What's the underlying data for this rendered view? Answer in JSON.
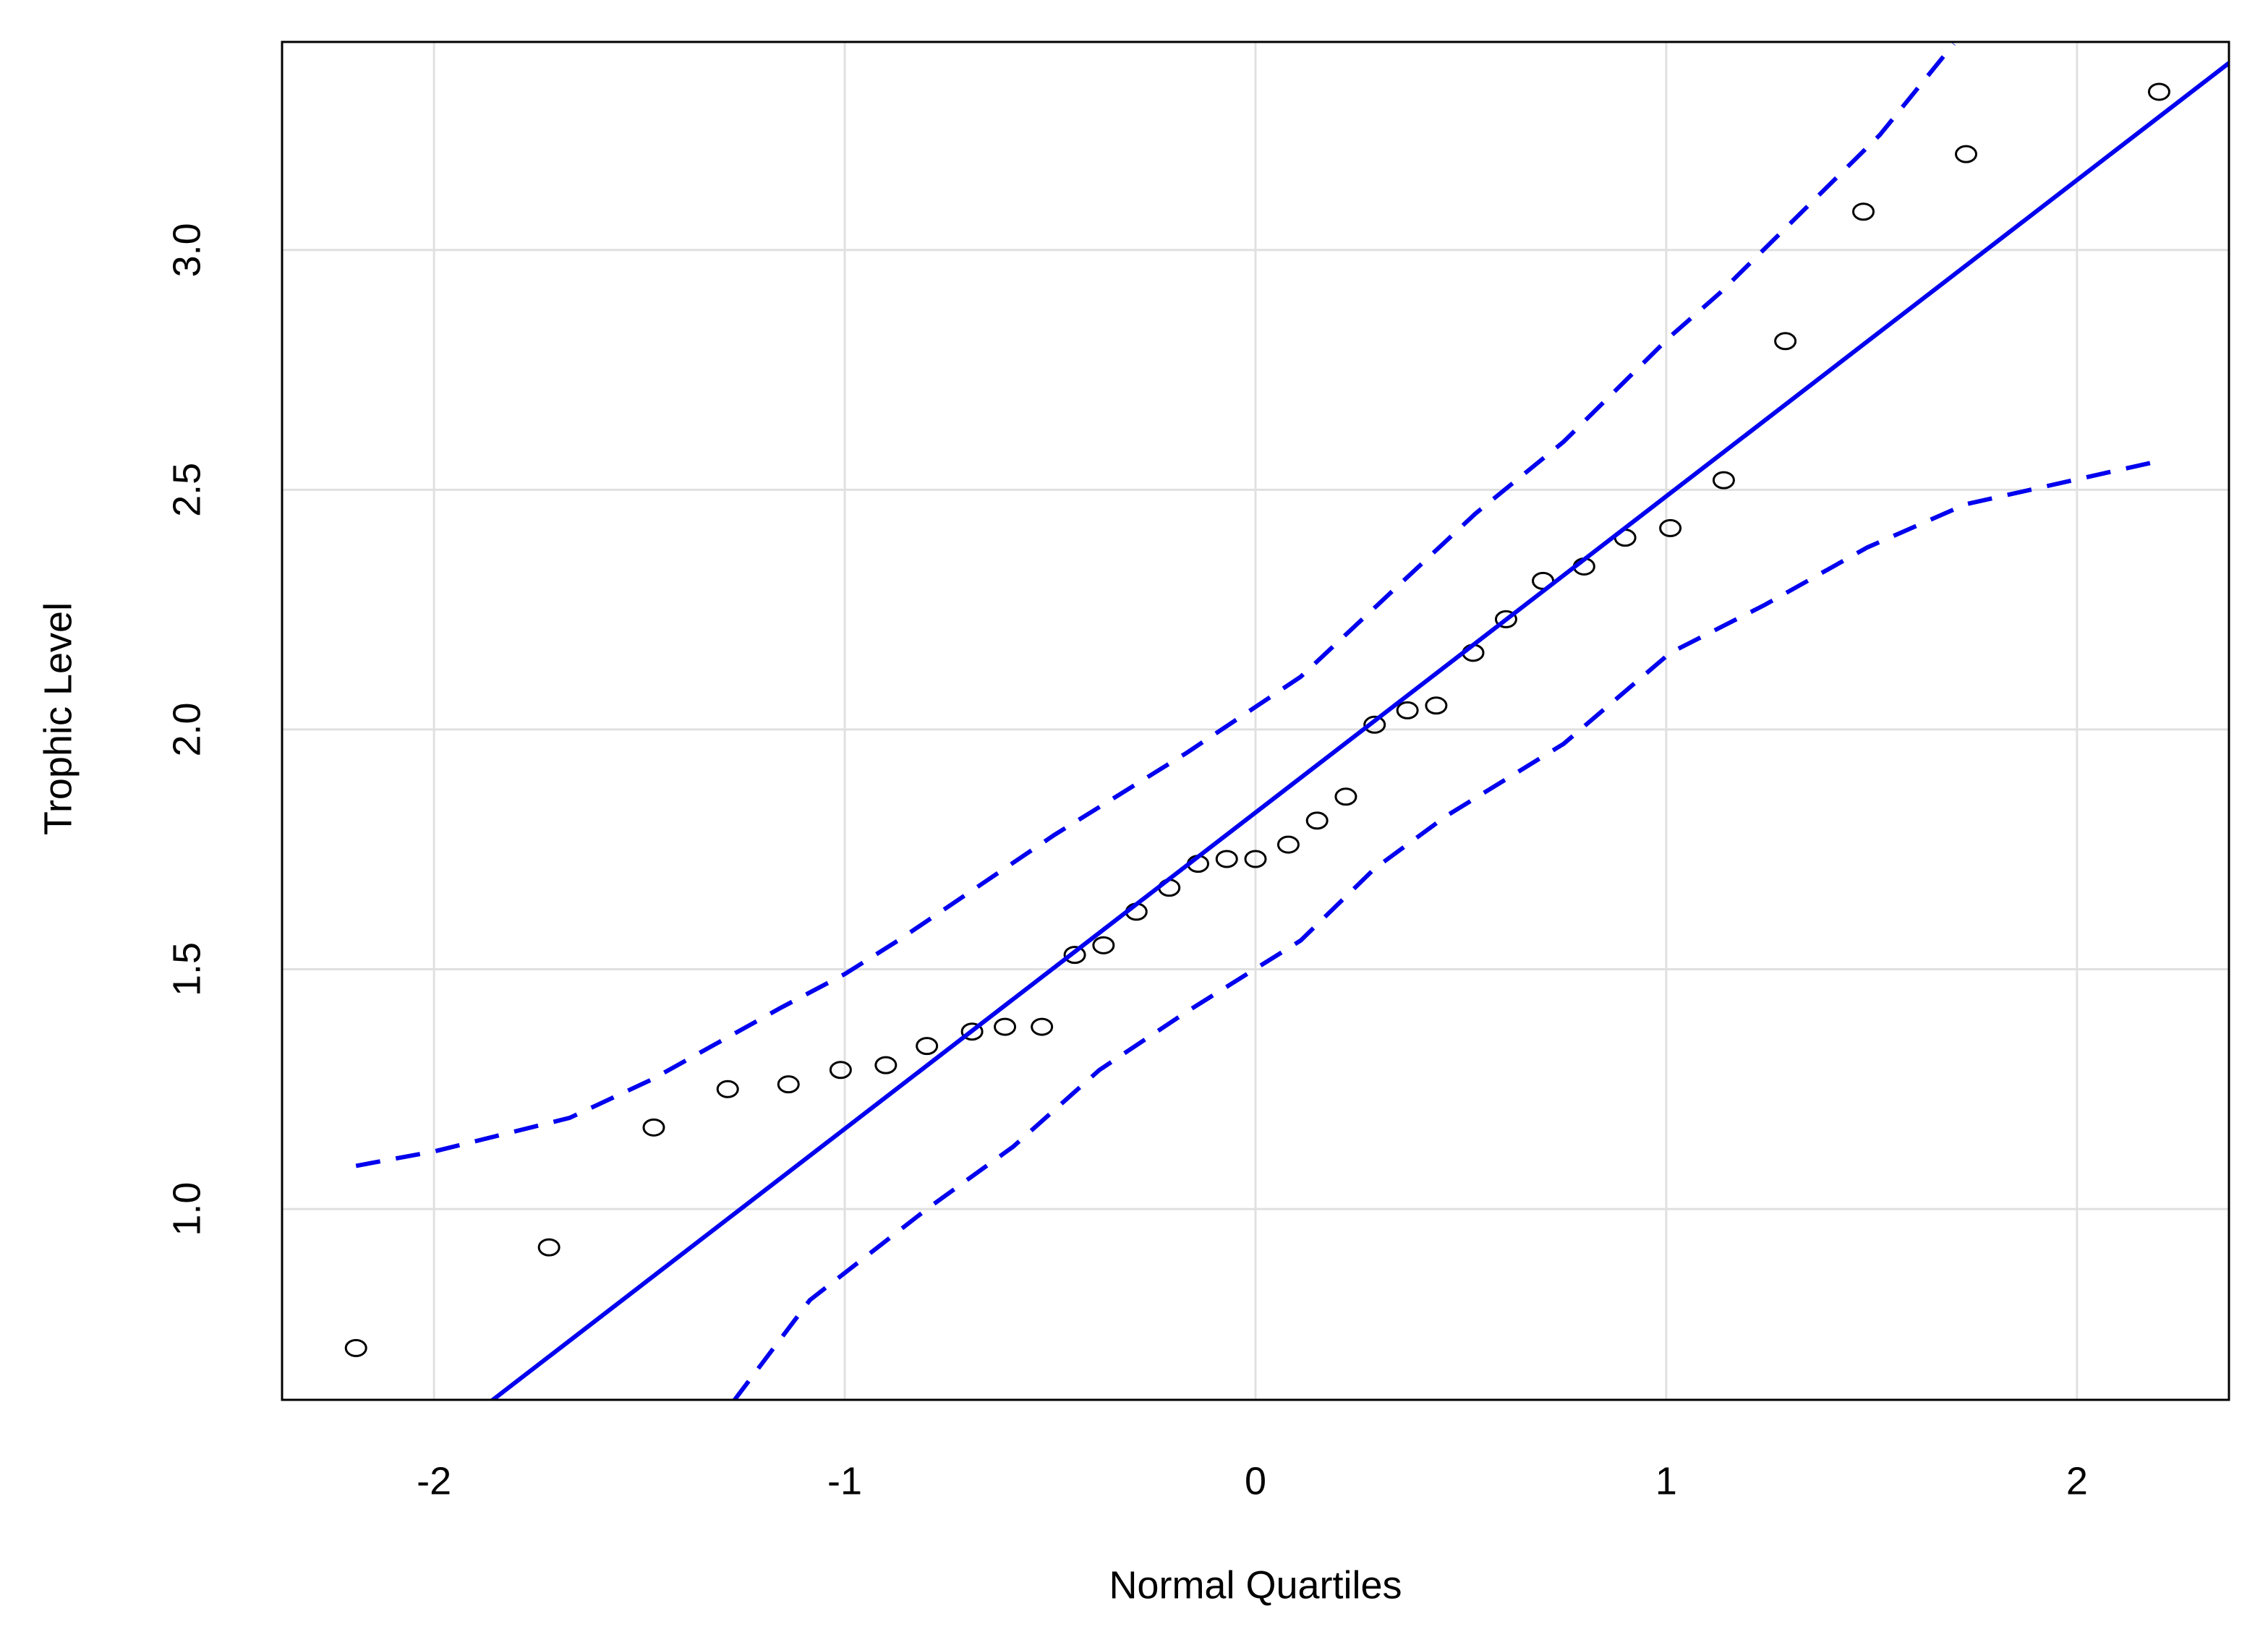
{
  "chart_data": {
    "type": "qq",
    "x_label": "Normal Quartiles",
    "y_label": "Trophic Level",
    "xlim": [
      -2.37,
      2.37
    ],
    "ylim": [
      0.602,
      3.434
    ],
    "xticks": [
      -2,
      -1,
      0,
      1,
      2
    ],
    "yticks": [
      {
        "value": 1,
        "label": "1.0"
      },
      1.5,
      {
        "value": 2,
        "label": "2.0"
      },
      2.5,
      {
        "value": 3,
        "label": "3.0"
      }
    ],
    "grid": true,
    "series": [
      {
        "style": "points",
        "color": "#000000",
        "x": [
          -2.19,
          -1.72,
          -1.465,
          -1.285,
          -1.137,
          -1.01,
          -0.9,
          -0.8,
          -0.69,
          -0.61,
          -0.52,
          -0.44,
          -0.37,
          -0.29,
          -0.21,
          -0.14,
          -0.07,
          0,
          0.08,
          0.15,
          0.22,
          0.29,
          0.37,
          0.44,
          0.53,
          0.61,
          0.7,
          0.8,
          0.9,
          1.01,
          1.14,
          1.29,
          1.48,
          1.73,
          2.2
        ],
        "values": [
          0.71,
          0.92,
          1.17,
          1.25,
          1.26,
          1.29,
          1.3,
          1.34,
          1.37,
          1.38,
          1.38,
          1.53,
          1.55,
          1.62,
          1.67,
          1.72,
          1.73,
          1.73,
          1.76,
          1.81,
          1.86,
          2.01,
          2.04,
          2.05,
          2.16,
          2.23,
          2.31,
          2.34,
          2.4,
          2.42,
          2.52,
          2.81,
          3.08,
          3.2,
          3.33
        ]
      },
      {
        "style": "solid",
        "color": "#0000ee",
        "x": [
          -1.86,
          2.37
        ],
        "values": [
          0.6,
          3.39
        ]
      },
      {
        "style": "dashed",
        "color": "#0000ee",
        "x": [
          -2.19,
          -2.0,
          -1.67,
          -1.47,
          -1.155,
          -1.0,
          -0.87,
          -0.49,
          -0.17,
          0.11,
          0.535,
          0.75,
          1.01,
          1.13,
          1.52,
          1.7
        ],
        "values": [
          1.09,
          1.12,
          1.19,
          1.27,
          1.42,
          1.49,
          1.56,
          1.78,
          1.95,
          2.11,
          2.45,
          2.6,
          2.82,
          2.91,
          3.24,
          3.43
        ]
      },
      {
        "style": "dashed",
        "color": "#0000ee",
        "x": [
          -1.27,
          -1.085,
          -0.8,
          -0.59,
          -0.38,
          -0.17,
          0.11,
          0.29,
          0.465,
          0.75,
          1.01,
          1.24,
          1.49,
          1.73,
          2.2
        ],
        "values": [
          0.6,
          0.81,
          1.0,
          1.13,
          1.29,
          1.41,
          1.56,
          1.71,
          1.82,
          1.97,
          2.16,
          2.26,
          2.38,
          2.47,
          2.56
        ]
      }
    ]
  }
}
